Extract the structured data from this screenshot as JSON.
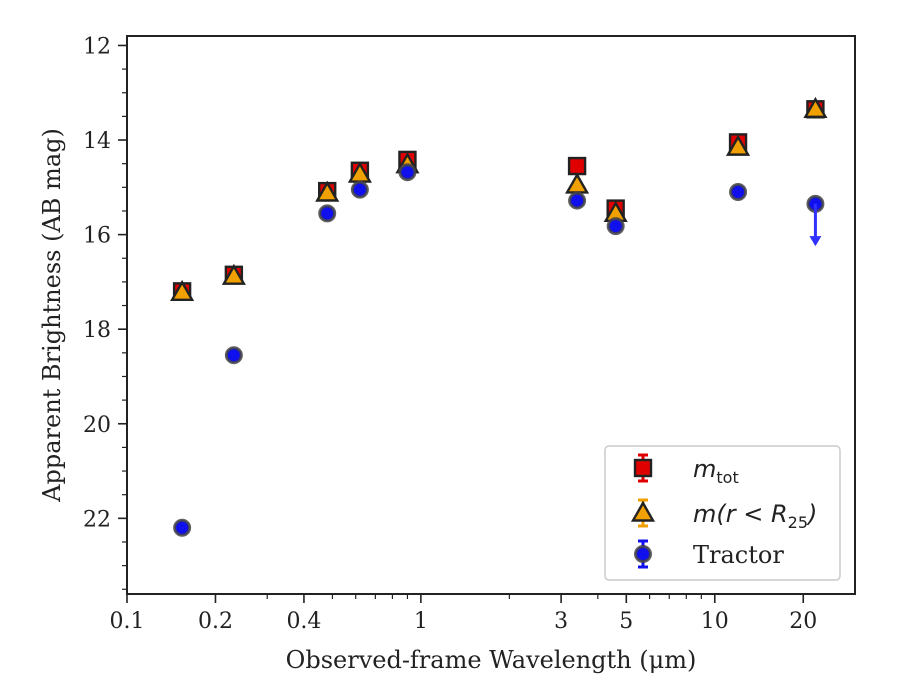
{
  "chart_data": {
    "type": "scatter",
    "xlabel": "Observed-frame Wavelength (μm)",
    "ylabel": "Apparent Brightness (AB mag)",
    "xscale": "log",
    "xlim": [
      0.1,
      30
    ],
    "ylim": [
      23.6,
      11.8
    ],
    "y_inverted": true,
    "grid": false,
    "legend_position": "lower-right",
    "x_ticks": [
      {
        "value": 0.1,
        "label": "0.1"
      },
      {
        "value": 0.2,
        "label": "0.2"
      },
      {
        "value": 0.4,
        "label": "0.4"
      },
      {
        "value": 1,
        "label": "1"
      },
      {
        "value": 3,
        "label": "3"
      },
      {
        "value": 5,
        "label": "5"
      },
      {
        "value": 10,
        "label": "10"
      },
      {
        "value": 20,
        "label": "20"
      }
    ],
    "y_ticks": [
      12,
      14,
      16,
      18,
      20,
      22
    ],
    "series": [
      {
        "name": "m_tot",
        "legend_main": "m",
        "legend_sub": "tot",
        "marker": "square",
        "color": "#e00000",
        "points": [
          {
            "x": 0.154,
            "y": 17.2
          },
          {
            "x": 0.231,
            "y": 16.85
          },
          {
            "x": 0.48,
            "y": 15.08
          },
          {
            "x": 0.62,
            "y": 14.65
          },
          {
            "x": 0.9,
            "y": 14.42
          },
          {
            "x": 3.4,
            "y": 14.55
          },
          {
            "x": 4.6,
            "y": 15.45
          },
          {
            "x": 12.0,
            "y": 14.05
          },
          {
            "x": 22.0,
            "y": 13.35
          }
        ]
      },
      {
        "name": "m(r < R25)",
        "legend_main": "m(r < R",
        "legend_sub": "25",
        "legend_close": ")",
        "marker": "triangle",
        "color": "#f0a000",
        "points": [
          {
            "x": 0.154,
            "y": 17.22
          },
          {
            "x": 0.231,
            "y": 16.88
          },
          {
            "x": 0.48,
            "y": 15.12
          },
          {
            "x": 0.62,
            "y": 14.72
          },
          {
            "x": 0.9,
            "y": 14.52
          },
          {
            "x": 3.4,
            "y": 14.95
          },
          {
            "x": 4.6,
            "y": 15.55
          },
          {
            "x": 12.0,
            "y": 14.15
          },
          {
            "x": 22.0,
            "y": 13.35
          }
        ]
      },
      {
        "name": "Tractor",
        "legend_main": "Tractor",
        "marker": "circle",
        "color": "#1010ee",
        "points": [
          {
            "x": 0.154,
            "y": 22.2
          },
          {
            "x": 0.231,
            "y": 18.55
          },
          {
            "x": 0.48,
            "y": 15.55
          },
          {
            "x": 0.62,
            "y": 15.05
          },
          {
            "x": 0.9,
            "y": 14.68
          },
          {
            "x": 3.4,
            "y": 15.28
          },
          {
            "x": 4.6,
            "y": 15.82
          },
          {
            "x": 12.0,
            "y": 15.1
          },
          {
            "x": 22.0,
            "y": 15.35,
            "upper_limit": true,
            "limit_to": 16.2
          }
        ]
      }
    ]
  }
}
